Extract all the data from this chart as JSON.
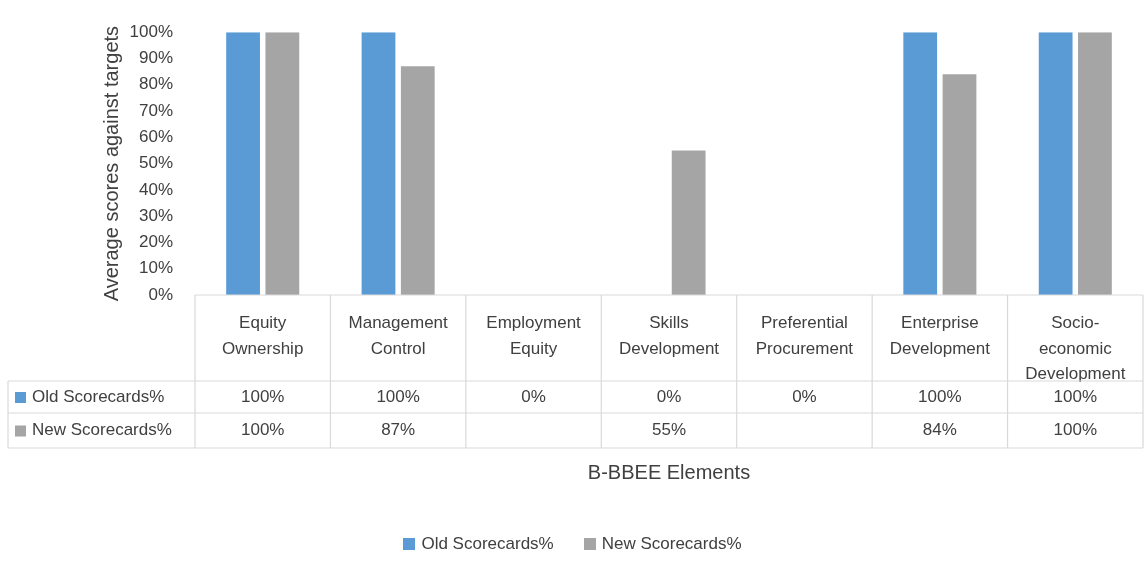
{
  "chart_data": {
    "type": "bar",
    "xlabel": "B-BBEE Elements",
    "ylabel": "Average scores against targets",
    "categories": [
      "Equity Ownership",
      "Management Control",
      "Employment Equity",
      "Skills Development",
      "Preferential Procurement",
      "Enterprise Development",
      "Socio-economic Development"
    ],
    "series": [
      {
        "name": "Old Scorecards%",
        "color": "#5b9bd5",
        "values": [
          100,
          100,
          0,
          0,
          0,
          100,
          100
        ],
        "value_labels": [
          "100%",
          "100%",
          "0%",
          "0%",
          "0%",
          "100%",
          "100%"
        ]
      },
      {
        "name": "New Scorecards%",
        "color": "#a5a5a5",
        "values": [
          100,
          87,
          null,
          55,
          null,
          84,
          100
        ],
        "value_labels": [
          "100%",
          "87%",
          null,
          "55%",
          null,
          "84%",
          "100%"
        ]
      }
    ],
    "ylim": [
      0,
      100
    ],
    "yticks": [
      {
        "value": 0,
        "label": "0%"
      },
      {
        "value": 10,
        "label": "10%"
      },
      {
        "value": 20,
        "label": "20%"
      },
      {
        "value": 30,
        "label": "30%"
      },
      {
        "value": 40,
        "label": "40%"
      },
      {
        "value": 50,
        "label": "50%"
      },
      {
        "value": 60,
        "label": "60%"
      },
      {
        "value": 70,
        "label": "70%"
      },
      {
        "value": 80,
        "label": "80%"
      },
      {
        "value": 90,
        "label": "90%"
      },
      {
        "value": 100,
        "label": "100%"
      }
    ],
    "grid": false,
    "legend": "bottom"
  }
}
